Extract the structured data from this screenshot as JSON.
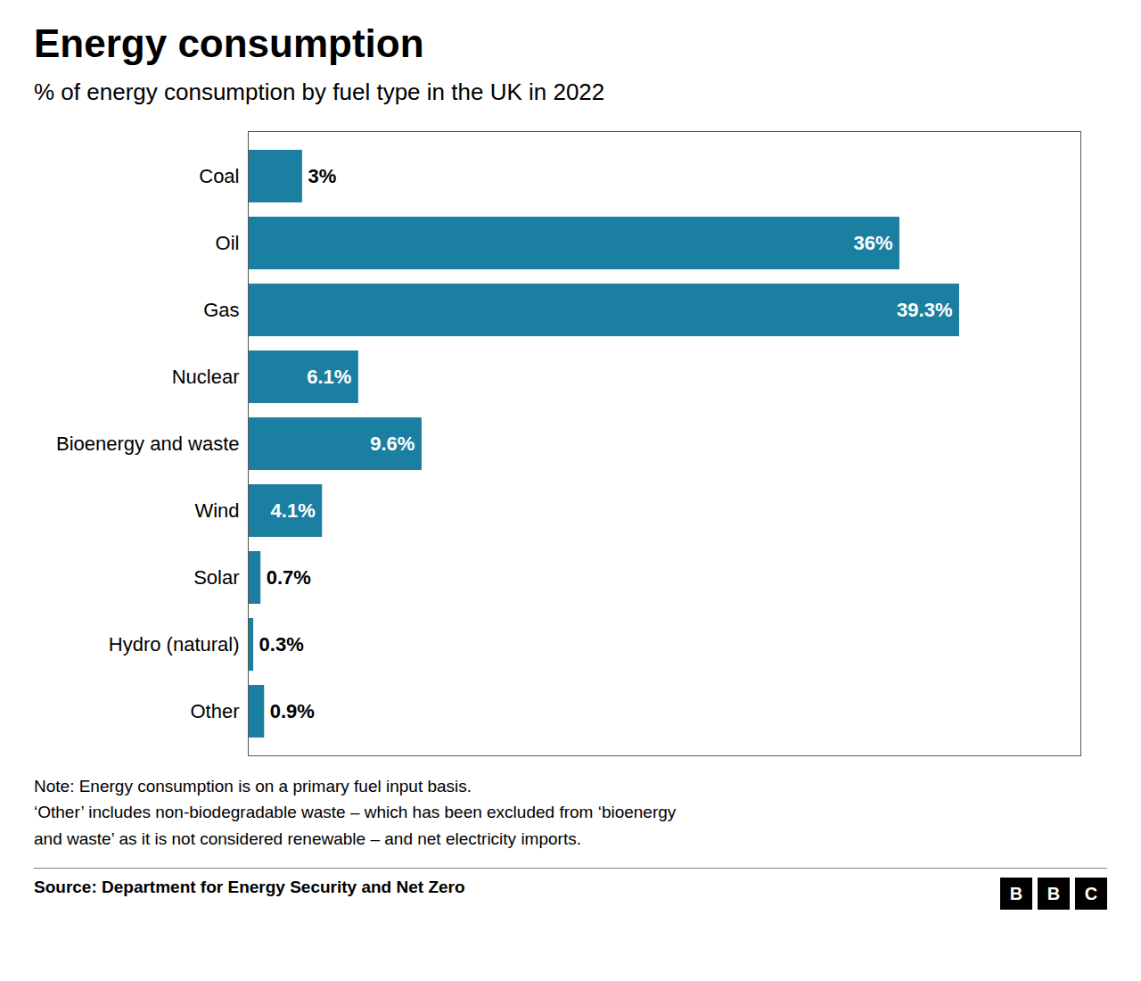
{
  "chart_data": {
    "type": "bar",
    "orientation": "horizontal",
    "title": "Energy consumption",
    "subtitle": "% of energy consumption by fuel type in the UK in 2022",
    "categories": [
      "Coal",
      "Oil",
      "Gas",
      "Nuclear",
      "Bioenergy and waste",
      "Wind",
      "Solar",
      "Hydro (natural)",
      "Other"
    ],
    "values": [
      3.0,
      36.0,
      39.3,
      6.1,
      9.6,
      4.1,
      0.7,
      0.3,
      0.9
    ],
    "value_labels": [
      "3%",
      "36%",
      "39.3%",
      "6.1%",
      "9.6%",
      "4.1%",
      "0.7%",
      "0.3%",
      "0.9%"
    ],
    "data_labels": true,
    "color": "#1a7fa0",
    "xlim": [
      0,
      46
    ],
    "tick_labels": "y",
    "grid": false,
    "notes": [
      "Note: Energy consumption is on a primary fuel input basis.",
      "‘Other’ includes non-biodegradable waste – which has been excluded from ‘bioenergy",
      "and waste’ as it is not considered renewable – and net electricity imports."
    ],
    "source": "Source: Department for Energy Security and Net Zero",
    "logo": [
      "B",
      "B",
      "C"
    ]
  }
}
